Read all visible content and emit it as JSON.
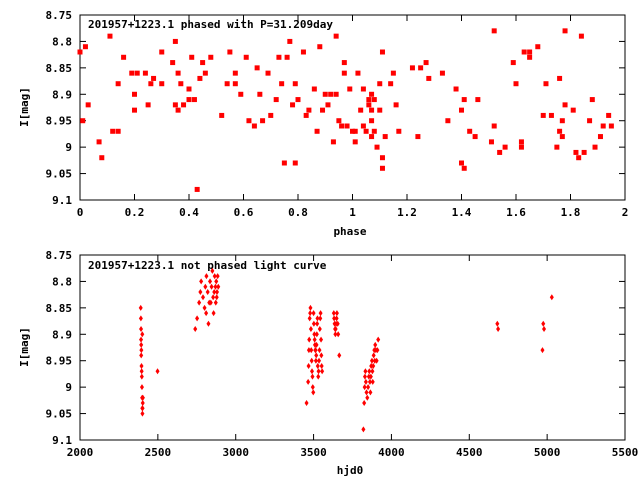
{
  "chart_data": [
    {
      "type": "scatter",
      "title": "201957+1223.1 phased with P=31.209day",
      "xlabel": "phase",
      "ylabel": "I[mag]",
      "xlim": [
        0,
        2
      ],
      "ylim": [
        8.75,
        9.1
      ],
      "y_inverted": true,
      "xticks": [
        "0",
        "0.2",
        "0.4",
        "0.6",
        "0.8",
        "1",
        "1.2",
        "1.4",
        "1.6",
        "1.8",
        "2"
      ],
      "yticks": [
        "8.75",
        "8.8",
        "8.85",
        "8.9",
        "8.95",
        "9",
        "9.05",
        "9.1"
      ],
      "marker_color": "#ff0000",
      "points": [
        [
          0.0,
          8.82
        ],
        [
          0.02,
          8.81
        ],
        [
          0.01,
          8.95
        ],
        [
          0.03,
          8.92
        ],
        [
          0.07,
          8.99
        ],
        [
          0.08,
          9.02
        ],
        [
          0.11,
          8.79
        ],
        [
          0.12,
          8.97
        ],
        [
          0.14,
          8.97
        ],
        [
          0.14,
          8.88
        ],
        [
          0.16,
          8.83
        ],
        [
          0.19,
          8.86
        ],
        [
          0.2,
          8.93
        ],
        [
          0.2,
          8.9
        ],
        [
          0.21,
          8.86
        ],
        [
          0.24,
          8.86
        ],
        [
          0.25,
          8.92
        ],
        [
          0.26,
          8.88
        ],
        [
          0.27,
          8.87
        ],
        [
          0.3,
          8.88
        ],
        [
          0.3,
          8.82
        ],
        [
          0.34,
          8.84
        ],
        [
          0.35,
          8.8
        ],
        [
          0.35,
          8.92
        ],
        [
          0.36,
          8.93
        ],
        [
          0.36,
          8.86
        ],
        [
          0.37,
          8.88
        ],
        [
          0.38,
          8.92
        ],
        [
          0.4,
          8.91
        ],
        [
          0.4,
          8.89
        ],
        [
          0.41,
          8.83
        ],
        [
          0.42,
          8.91
        ],
        [
          0.43,
          9.08
        ],
        [
          0.44,
          8.87
        ],
        [
          0.45,
          8.84
        ],
        [
          0.46,
          8.86
        ],
        [
          0.48,
          8.83
        ],
        [
          0.52,
          8.94
        ],
        [
          0.54,
          8.88
        ],
        [
          0.55,
          8.82
        ],
        [
          0.57,
          8.88
        ],
        [
          0.57,
          8.86
        ],
        [
          0.59,
          8.9
        ],
        [
          0.61,
          8.83
        ],
        [
          0.62,
          8.95
        ],
        [
          0.64,
          8.96
        ],
        [
          0.65,
          8.85
        ],
        [
          0.66,
          8.9
        ],
        [
          0.67,
          8.95
        ],
        [
          0.69,
          8.86
        ],
        [
          0.7,
          8.94
        ],
        [
          0.72,
          8.91
        ],
        [
          0.73,
          8.83
        ],
        [
          0.74,
          8.88
        ],
        [
          0.75,
          9.03
        ],
        [
          0.76,
          8.83
        ],
        [
          0.77,
          8.8
        ],
        [
          0.78,
          8.92
        ],
        [
          0.79,
          8.88
        ],
        [
          0.79,
          9.03
        ],
        [
          0.8,
          8.91
        ],
        [
          0.82,
          8.82
        ],
        [
          0.83,
          8.94
        ],
        [
          0.84,
          8.93
        ],
        [
          0.86,
          8.89
        ],
        [
          0.87,
          8.97
        ],
        [
          0.88,
          8.81
        ],
        [
          0.89,
          8.93
        ],
        [
          0.9,
          8.9
        ],
        [
          0.91,
          8.92
        ],
        [
          0.92,
          8.9
        ],
        [
          0.93,
          8.99
        ],
        [
          0.94,
          8.9
        ],
        [
          0.94,
          8.79
        ],
        [
          0.95,
          8.95
        ],
        [
          0.96,
          8.96
        ],
        [
          0.97,
          8.86
        ],
        [
          0.97,
          8.84
        ],
        [
          0.98,
          8.96
        ],
        [
          0.99,
          8.89
        ],
        [
          1.0,
          8.97
        ],
        [
          1.01,
          8.99
        ],
        [
          1.01,
          8.97
        ],
        [
          1.02,
          8.86
        ],
        [
          1.03,
          8.93
        ],
        [
          1.04,
          8.89
        ],
        [
          1.04,
          8.96
        ],
        [
          1.05,
          8.97
        ],
        [
          1.06,
          8.92
        ],
        [
          1.06,
          8.91
        ],
        [
          1.07,
          8.9
        ],
        [
          1.07,
          8.93
        ],
        [
          1.07,
          8.95
        ],
        [
          1.07,
          8.98
        ],
        [
          1.08,
          8.97
        ],
        [
          1.08,
          8.91
        ],
        [
          1.09,
          9.0
        ],
        [
          1.1,
          8.88
        ],
        [
          1.1,
          8.93
        ],
        [
          1.11,
          8.82
        ],
        [
          1.11,
          9.02
        ],
        [
          1.11,
          9.04
        ],
        [
          1.12,
          8.98
        ],
        [
          1.14,
          8.88
        ],
        [
          1.15,
          8.86
        ],
        [
          1.16,
          8.92
        ],
        [
          1.17,
          8.97
        ],
        [
          1.22,
          8.85
        ],
        [
          1.24,
          8.98
        ],
        [
          1.25,
          8.85
        ],
        [
          1.27,
          8.84
        ],
        [
          1.28,
          8.87
        ],
        [
          1.33,
          8.86
        ],
        [
          1.35,
          8.95
        ],
        [
          1.38,
          8.89
        ],
        [
          1.4,
          8.93
        ],
        [
          1.4,
          9.03
        ],
        [
          1.41,
          9.04
        ],
        [
          1.41,
          8.91
        ],
        [
          1.43,
          8.97
        ],
        [
          1.45,
          8.98
        ],
        [
          1.46,
          8.91
        ],
        [
          1.51,
          8.99
        ],
        [
          1.52,
          8.96
        ],
        [
          1.52,
          8.78
        ],
        [
          1.54,
          9.01
        ],
        [
          1.56,
          9.0
        ],
        [
          1.59,
          8.84
        ],
        [
          1.6,
          8.88
        ],
        [
          1.62,
          8.99
        ],
        [
          1.62,
          9.0
        ],
        [
          1.63,
          8.82
        ],
        [
          1.65,
          8.83
        ],
        [
          1.65,
          8.82
        ],
        [
          1.68,
          8.81
        ],
        [
          1.7,
          8.94
        ],
        [
          1.71,
          8.88
        ],
        [
          1.73,
          8.94
        ],
        [
          1.75,
          9.0
        ],
        [
          1.76,
          8.87
        ],
        [
          1.76,
          8.97
        ],
        [
          1.77,
          8.95
        ],
        [
          1.77,
          8.98
        ],
        [
          1.78,
          8.78
        ],
        [
          1.78,
          8.92
        ],
        [
          1.81,
          8.93
        ],
        [
          1.82,
          9.01
        ],
        [
          1.83,
          9.02
        ],
        [
          1.84,
          8.79
        ],
        [
          1.85,
          9.01
        ],
        [
          1.87,
          8.95
        ],
        [
          1.88,
          8.91
        ],
        [
          1.89,
          9.0
        ],
        [
          1.91,
          8.98
        ],
        [
          1.92,
          8.96
        ],
        [
          1.94,
          8.94
        ],
        [
          1.95,
          8.96
        ]
      ]
    },
    {
      "type": "scatter",
      "title": "201957+1223.1 not phased light curve",
      "xlabel": "hjd0",
      "ylabel": "I[mag]",
      "xlim": [
        2000,
        5500
      ],
      "ylim": [
        8.75,
        9.1
      ],
      "y_inverted": true,
      "xticks": [
        "2000",
        "2500",
        "3000",
        "3500",
        "4000",
        "4500",
        "5000",
        "5500"
      ],
      "yticks": [
        "8.75",
        "8.8",
        "8.85",
        "8.9",
        "8.95",
        "9",
        "9.05",
        "9.1"
      ],
      "marker_color": "#ff0000",
      "points": [
        [
          2390,
          8.85
        ],
        [
          2391,
          8.87
        ],
        [
          2392,
          8.89
        ],
        [
          2392,
          8.91
        ],
        [
          2393,
          8.92
        ],
        [
          2393,
          8.94
        ],
        [
          2394,
          8.93
        ],
        [
          2395,
          8.96
        ],
        [
          2396,
          8.97
        ],
        [
          2397,
          8.98
        ],
        [
          2398,
          9.0
        ],
        [
          2399,
          9.02
        ],
        [
          2400,
          9.04
        ],
        [
          2401,
          9.05
        ],
        [
          2402,
          9.04
        ],
        [
          2403,
          9.03
        ],
        [
          2404,
          9.02
        ],
        [
          2400,
          8.9
        ],
        [
          2498,
          8.97
        ],
        [
          2740,
          8.89
        ],
        [
          2752,
          8.87
        ],
        [
          2765,
          8.84
        ],
        [
          2773,
          8.82
        ],
        [
          2778,
          8.8
        ],
        [
          2790,
          8.83
        ],
        [
          2800,
          8.85
        ],
        [
          2805,
          8.81
        ],
        [
          2810,
          8.86
        ],
        [
          2812,
          8.79
        ],
        [
          2820,
          8.82
        ],
        [
          2825,
          8.88
        ],
        [
          2830,
          8.84
        ],
        [
          2835,
          8.8
        ],
        [
          2840,
          8.84
        ],
        [
          2845,
          8.81
        ],
        [
          2850,
          8.78
        ],
        [
          2855,
          8.83
        ],
        [
          2858,
          8.86
        ],
        [
          2862,
          8.82
        ],
        [
          2865,
          8.79
        ],
        [
          2870,
          8.81
        ],
        [
          2872,
          8.84
        ],
        [
          2875,
          8.8
        ],
        [
          2878,
          8.83
        ],
        [
          2880,
          8.82
        ],
        [
          2884,
          8.79
        ],
        [
          2888,
          8.81
        ],
        [
          3455,
          9.03
        ],
        [
          3465,
          8.99
        ],
        [
          3468,
          8.96
        ],
        [
          3470,
          8.93
        ],
        [
          3472,
          8.91
        ],
        [
          3475,
          8.87
        ],
        [
          3478,
          8.86
        ],
        [
          3480,
          8.85
        ],
        [
          3483,
          8.89
        ],
        [
          3485,
          8.93
        ],
        [
          3488,
          8.95
        ],
        [
          3490,
          8.97
        ],
        [
          3493,
          8.98
        ],
        [
          3495,
          9.0
        ],
        [
          3498,
          9.01
        ],
        [
          3500,
          8.86
        ],
        [
          3502,
          8.88
        ],
        [
          3505,
          8.9
        ],
        [
          3507,
          8.91
        ],
        [
          3509,
          8.92
        ],
        [
          3511,
          8.93
        ],
        [
          3513,
          8.93
        ],
        [
          3515,
          8.95
        ],
        [
          3517,
          8.94
        ],
        [
          3519,
          8.92
        ],
        [
          3521,
          8.9
        ],
        [
          3523,
          8.88
        ],
        [
          3525,
          8.87
        ],
        [
          3527,
          8.96
        ],
        [
          3530,
          8.98
        ],
        [
          3532,
          8.97
        ],
        [
          3535,
          8.95
        ],
        [
          3538,
          8.93
        ],
        [
          3540,
          8.89
        ],
        [
          3543,
          8.87
        ],
        [
          3545,
          8.86
        ],
        [
          3548,
          8.91
        ],
        [
          3550,
          8.94
        ],
        [
          3552,
          8.96
        ],
        [
          3555,
          8.97
        ],
        [
          3630,
          8.86
        ],
        [
          3632,
          8.87
        ],
        [
          3635,
          8.88
        ],
        [
          3638,
          8.89
        ],
        [
          3640,
          8.9
        ],
        [
          3642,
          8.89
        ],
        [
          3645,
          8.88
        ],
        [
          3648,
          8.87
        ],
        [
          3650,
          8.86
        ],
        [
          3655,
          8.88
        ],
        [
          3658,
          8.9
        ],
        [
          3665,
          8.94
        ],
        [
          3820,
          9.08
        ],
        [
          3825,
          9.03
        ],
        [
          3828,
          9.0
        ],
        [
          3830,
          8.98
        ],
        [
          3833,
          8.97
        ],
        [
          3836,
          8.99
        ],
        [
          3840,
          9.01
        ],
        [
          3845,
          9.02
        ],
        [
          3850,
          9.0
        ],
        [
          3855,
          8.98
        ],
        [
          3858,
          8.97
        ],
        [
          3862,
          8.99
        ],
        [
          3865,
          9.01
        ],
        [
          3868,
          8.98
        ],
        [
          3870,
          8.96
        ],
        [
          3875,
          8.95
        ],
        [
          3878,
          8.97
        ],
        [
          3880,
          8.99
        ],
        [
          3883,
          8.96
        ],
        [
          3886,
          8.94
        ],
        [
          3890,
          8.93
        ],
        [
          3893,
          8.95
        ],
        [
          3896,
          8.92
        ],
        [
          3900,
          8.93
        ],
        [
          3905,
          8.95
        ],
        [
          3910,
          8.93
        ],
        [
          3915,
          8.91
        ],
        [
          4680,
          8.88
        ],
        [
          4685,
          8.89
        ],
        [
          4970,
          8.93
        ],
        [
          4975,
          8.88
        ],
        [
          4980,
          8.89
        ],
        [
          5030,
          8.83
        ]
      ]
    }
  ]
}
